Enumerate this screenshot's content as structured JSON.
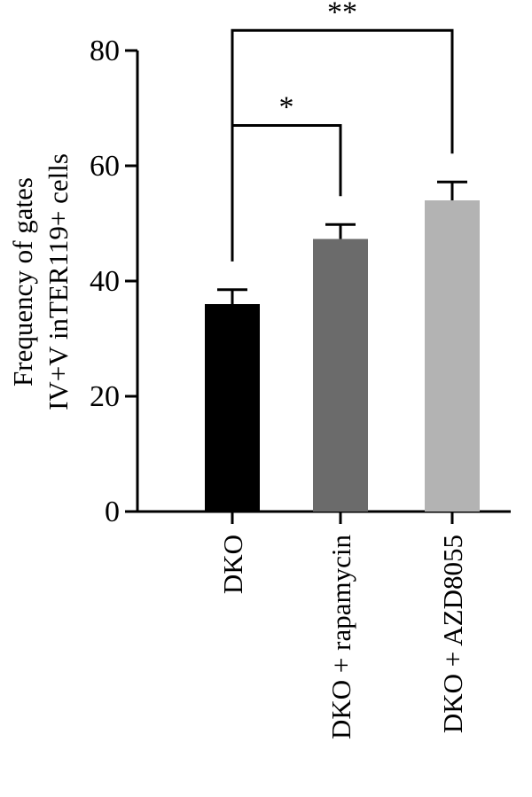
{
  "chart_data": {
    "type": "bar",
    "ylabel": [
      "Frequency of gates",
      "IV+V inTER119+ cells"
    ],
    "ylim": [
      0,
      80
    ],
    "yticks": [
      0,
      20,
      40,
      60,
      80
    ],
    "categories": [
      "DKO",
      "DKO + rapamycin",
      "DKO + AZD8055"
    ],
    "values": [
      36,
      47.3,
      54
    ],
    "errors": [
      2.5,
      2.5,
      3.2
    ],
    "colors": [
      "#000000",
      "#6b6b6b",
      "#b3b3b3"
    ],
    "significance": [
      {
        "from": 0,
        "to": 1,
        "label": "*",
        "y": 67
      },
      {
        "from": 0,
        "to": 2,
        "label": "**",
        "y": 83.5
      }
    ]
  }
}
